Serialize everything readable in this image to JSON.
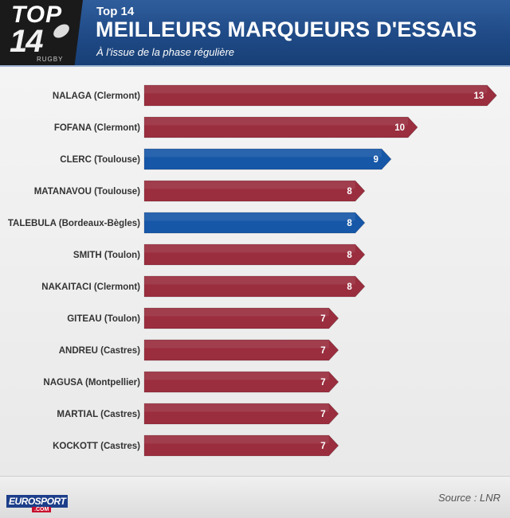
{
  "header": {
    "logo_top": "TOP",
    "logo_number": "14",
    "logo_rugby": "RUGBY",
    "kicker": "Top 14",
    "title": "MEILLEURS MARQUEURS D'ESSAIS",
    "subtitle": "À l'issue de la phase régulière"
  },
  "footer": {
    "eurosport": "EUROSPORT",
    "eurosport_com": ".COM",
    "source": "Source : LNR"
  },
  "colors": {
    "clermont": "#9a2e3e",
    "toulouse": "#1757a8",
    "label_text": "#333333",
    "value_text": "#ffffff"
  },
  "chart_data": {
    "type": "bar",
    "orientation": "horizontal",
    "title": "MEILLEURS MARQUEURS D'ESSAIS",
    "categories": [
      "NALAGA (Clermont)",
      "FOFANA (Clermont)",
      "CLERC (Toulouse)",
      "MATANAVOU (Toulouse)",
      "TALEBULA (Bordeaux-Bègles)",
      "SMITH (Toulon)",
      "NAKAITACI (Clermont)",
      "GITEAU (Toulon)",
      "ANDREU (Castres)",
      "NAGUSA (Montpellier)",
      "MARTIAL (Castres)",
      "KOCKOTT (Castres)"
    ],
    "values": [
      13,
      10,
      9,
      8,
      8,
      8,
      8,
      7,
      7,
      7,
      7,
      7
    ],
    "bar_colors": [
      "clermont",
      "clermont",
      "toulouse",
      "clermont",
      "toulouse",
      "clermont",
      "clermont",
      "clermont",
      "clermont",
      "clermont",
      "clermont",
      "clermont"
    ],
    "xlim": [
      0,
      13
    ],
    "grid": false,
    "legend": "none"
  }
}
